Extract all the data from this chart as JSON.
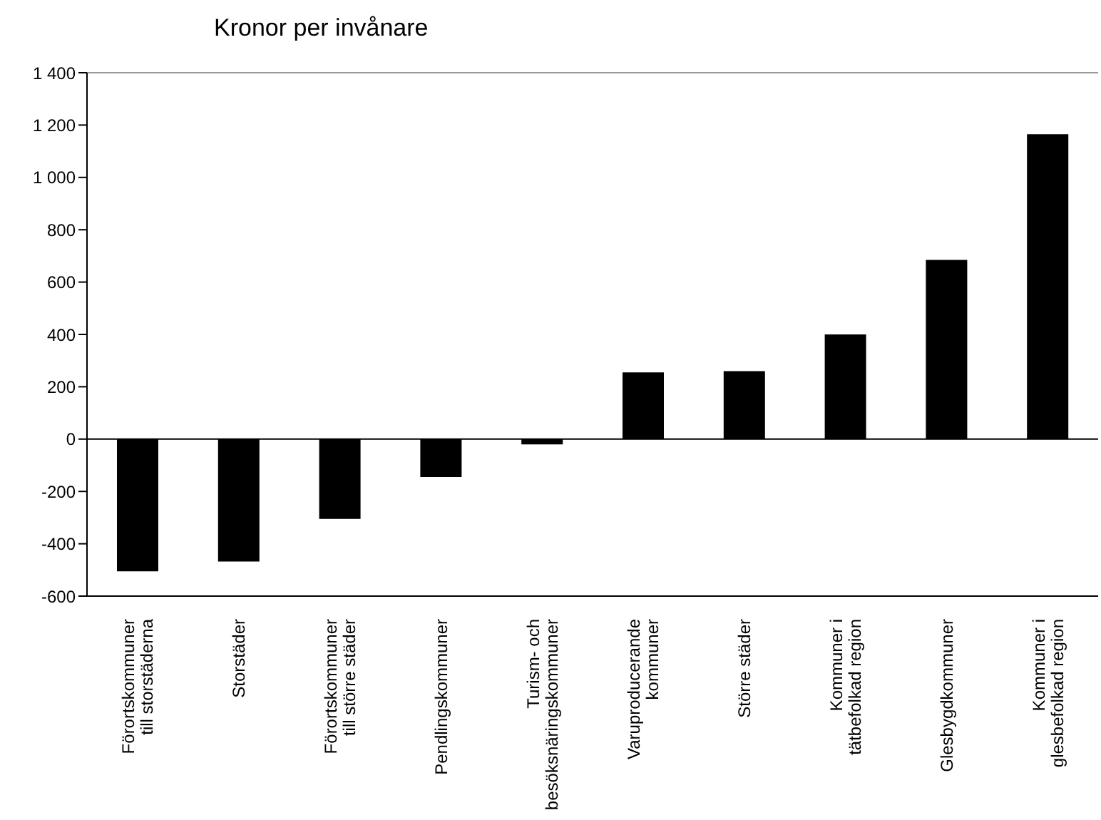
{
  "chart_data": {
    "type": "bar",
    "title": "Kronor per invånare",
    "categories": [
      "Förortskommuner till storstäderna",
      "Storstäder",
      "Förortskommuner till större städer",
      "Pendlingskommuner",
      "Turism- och besöksnäringskommuner",
      "Varuproducerande kommuner",
      "Större städer",
      "Kommuner i tätbefolkad region",
      "Glesbygdkommuner",
      "Kommuner i glesbefolkad region"
    ],
    "values": [
      -505,
      -468,
      -305,
      -145,
      -20,
      255,
      260,
      400,
      685,
      1165
    ],
    "color": "#000000",
    "ylim": [
      -600,
      1400
    ],
    "yticks": [
      -600,
      -400,
      -200,
      0,
      200,
      400,
      600,
      800,
      1000,
      1200,
      1400
    ],
    "legend": false
  }
}
